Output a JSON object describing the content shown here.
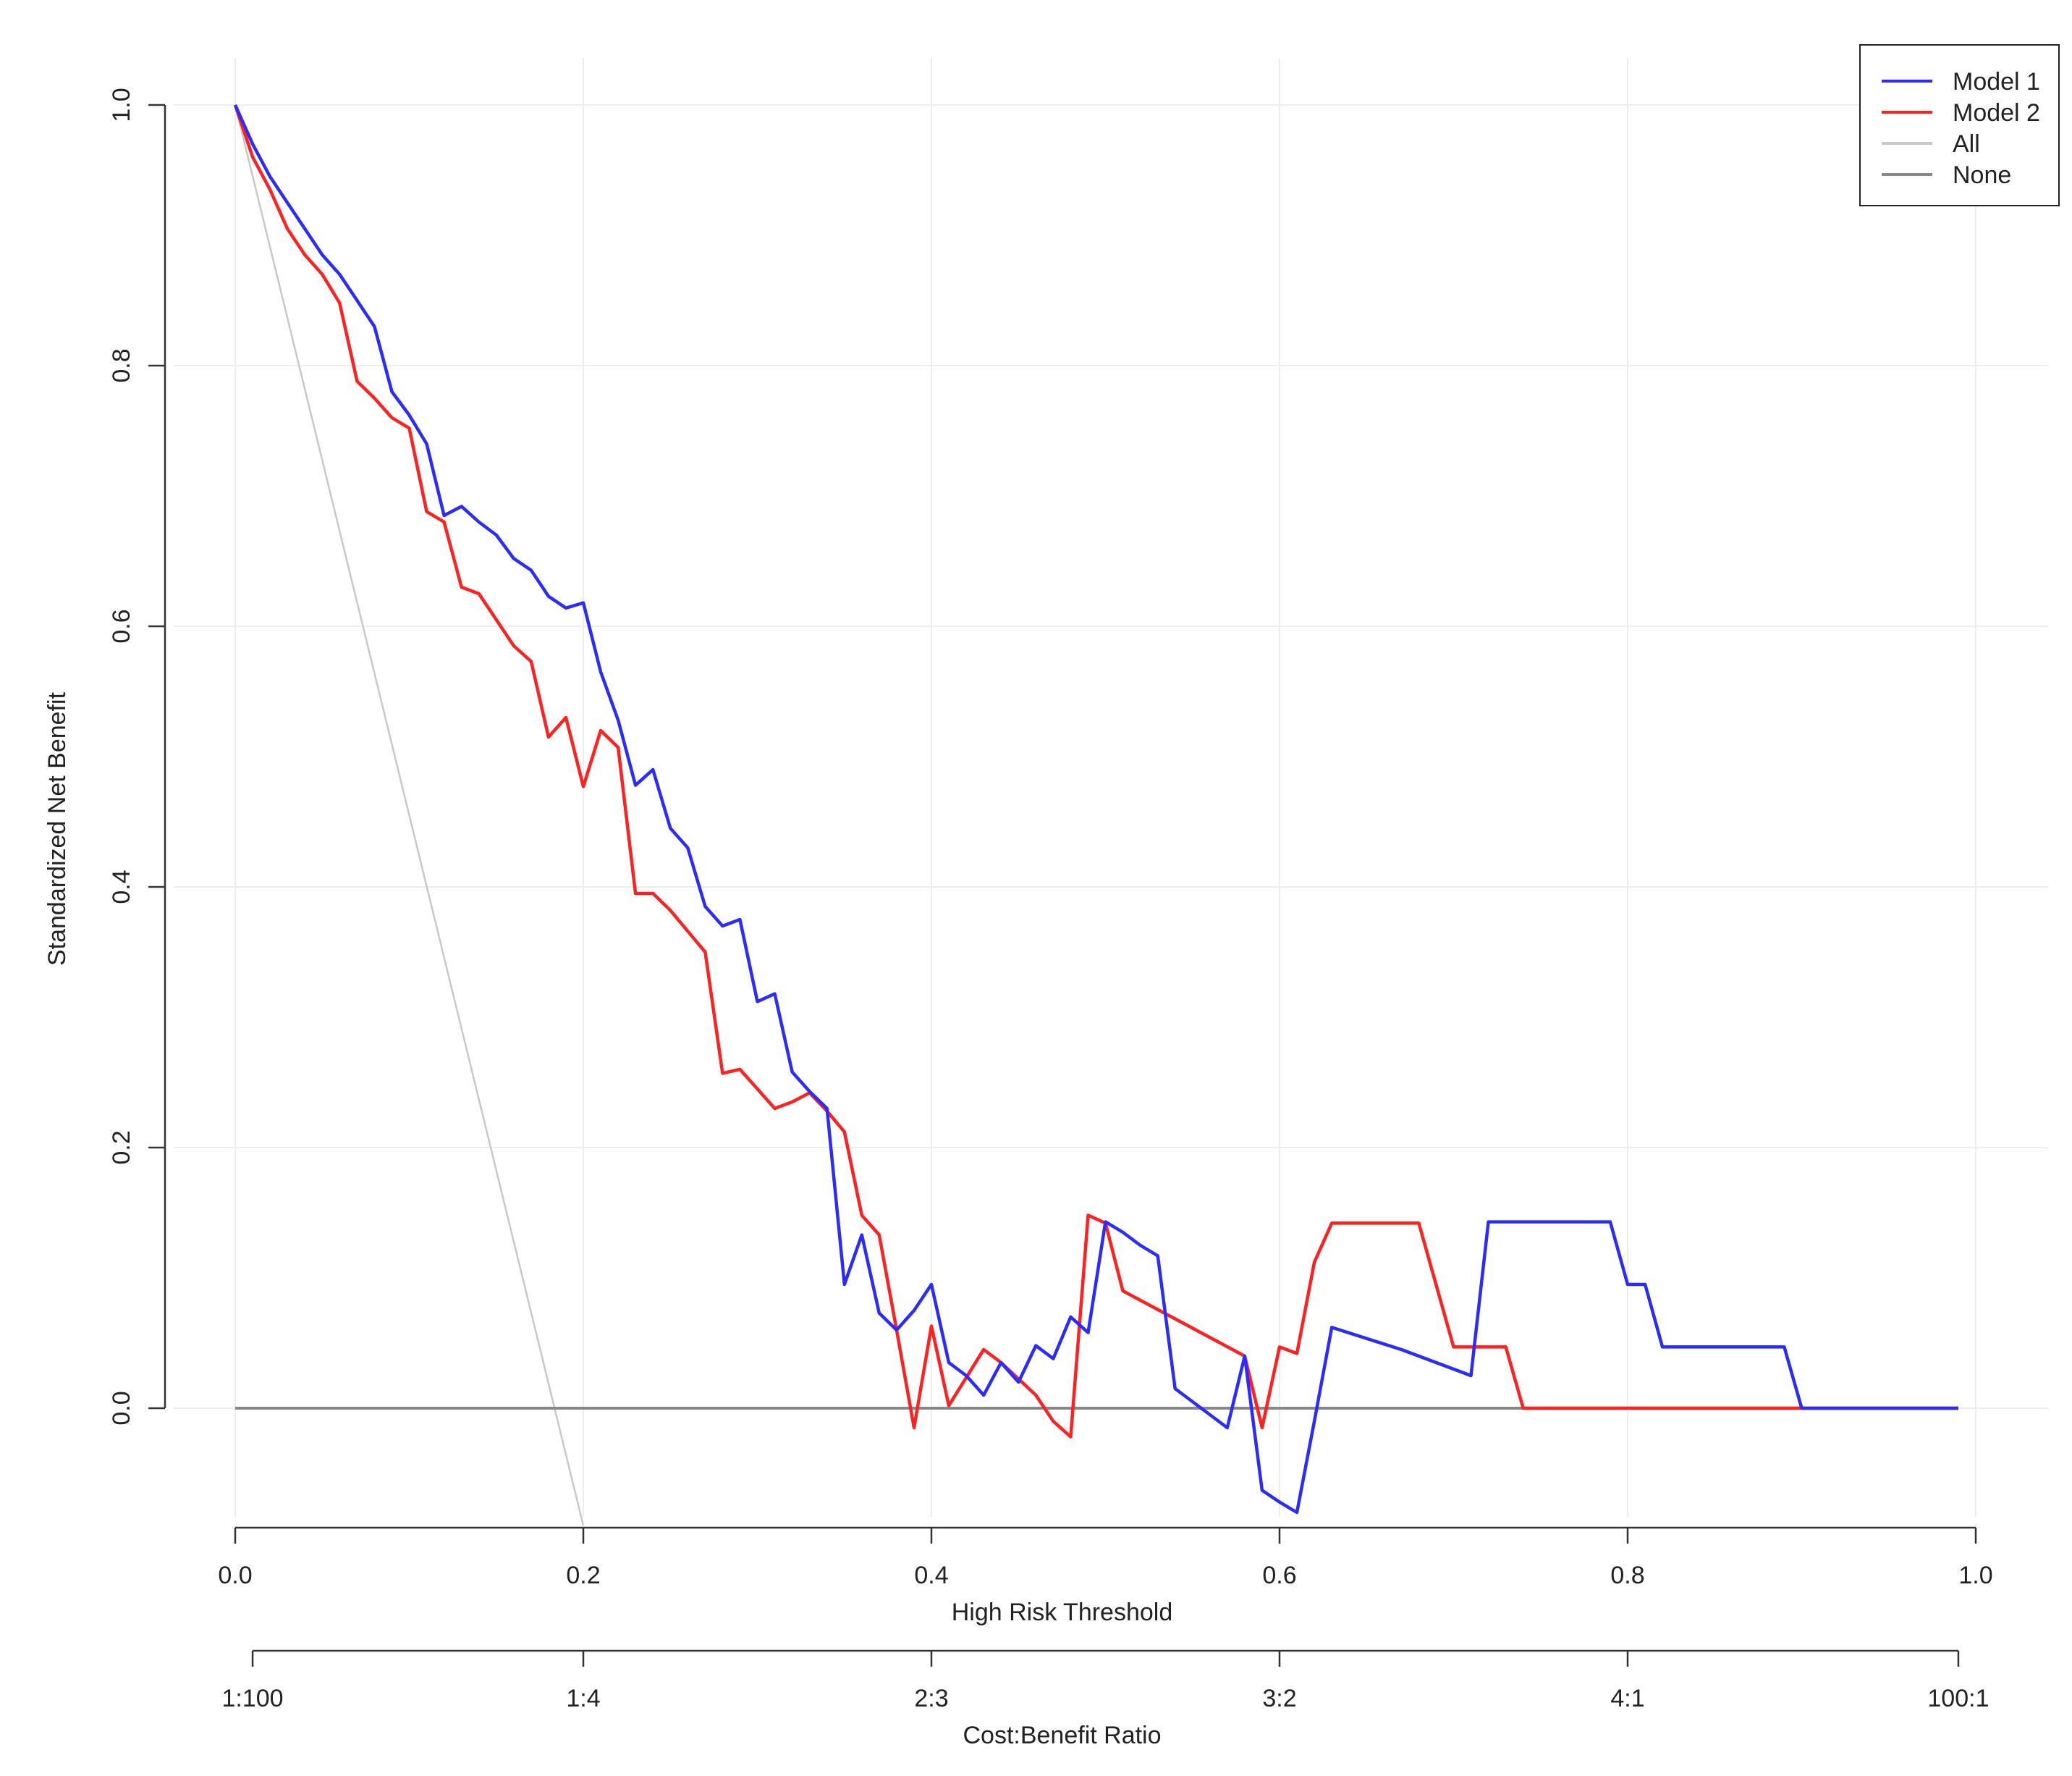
{
  "chart_data": {
    "type": "line",
    "xlabel": "High Risk Threshold",
    "ylabel": "Standardized Net Benefit",
    "x2label": "Cost:Benefit Ratio",
    "xlim": [
      0,
      1
    ],
    "ylim": [
      -0.09,
      1.0
    ],
    "grid": true,
    "legend_position": "top-right",
    "x_ticks": [
      "0.0",
      "0.2",
      "0.4",
      "0.6",
      "0.8",
      "1.0"
    ],
    "x_tick_values": [
      0,
      0.2,
      0.4,
      0.6,
      0.8,
      1.0
    ],
    "y_ticks": [
      "0.0",
      "0.2",
      "0.4",
      "0.6",
      "0.8",
      "1.0"
    ],
    "y_tick_values": [
      0,
      0.2,
      0.4,
      0.6,
      0.8,
      1.0
    ],
    "x2_ticks": [
      "1:100",
      "1:4",
      "2:3",
      "3:2",
      "4:1",
      "100:1"
    ],
    "x2_tick_values": [
      0.01,
      0.2,
      0.4,
      0.6,
      0.8,
      0.99
    ],
    "series": [
      {
        "name": "Model 1",
        "color": "#2b2bff",
        "points": [
          [
            0,
            1.0
          ],
          [
            0.01,
            0.97
          ],
          [
            0.02,
            0.945
          ],
          [
            0.03,
            0.925
          ],
          [
            0.04,
            0.905
          ],
          [
            0.05,
            0.885
          ],
          [
            0.06,
            0.87
          ],
          [
            0.07,
            0.85
          ],
          [
            0.08,
            0.83
          ],
          [
            0.09,
            0.78
          ],
          [
            0.1,
            0.762
          ],
          [
            0.11,
            0.74
          ],
          [
            0.12,
            0.685
          ],
          [
            0.13,
            0.692
          ],
          [
            0.14,
            0.68
          ],
          [
            0.15,
            0.67
          ],
          [
            0.16,
            0.652
          ],
          [
            0.17,
            0.643
          ],
          [
            0.18,
            0.623
          ],
          [
            0.19,
            0.614
          ],
          [
            0.2,
            0.618
          ],
          [
            0.21,
            0.565
          ],
          [
            0.22,
            0.528
          ],
          [
            0.23,
            0.478
          ],
          [
            0.24,
            0.49
          ],
          [
            0.25,
            0.445
          ],
          [
            0.26,
            0.43
          ],
          [
            0.27,
            0.385
          ],
          [
            0.28,
            0.37
          ],
          [
            0.29,
            0.375
          ],
          [
            0.3,
            0.312
          ],
          [
            0.31,
            0.318
          ],
          [
            0.32,
            0.258
          ],
          [
            0.33,
            0.243
          ],
          [
            0.34,
            0.23
          ],
          [
            0.35,
            0.095
          ],
          [
            0.36,
            0.133
          ],
          [
            0.37,
            0.073
          ],
          [
            0.38,
            0.06
          ],
          [
            0.39,
            0.075
          ],
          [
            0.4,
            0.095
          ],
          [
            0.41,
            0.035
          ],
          [
            0.42,
            0.025
          ],
          [
            0.43,
            0.01
          ],
          [
            0.44,
            0.035
          ],
          [
            0.45,
            0.02
          ],
          [
            0.46,
            0.048
          ],
          [
            0.47,
            0.038
          ],
          [
            0.48,
            0.07
          ],
          [
            0.49,
            0.058
          ],
          [
            0.5,
            0.143
          ],
          [
            0.51,
            0.135
          ],
          [
            0.52,
            0.125
          ],
          [
            0.53,
            0.117
          ],
          [
            0.54,
            0.015
          ],
          [
            0.55,
            0.005
          ],
          [
            0.56,
            -0.005
          ],
          [
            0.57,
            -0.015
          ],
          [
            0.58,
            0.04
          ],
          [
            0.59,
            -0.063
          ],
          [
            0.6,
            -0.072
          ],
          [
            0.61,
            -0.08
          ],
          [
            0.62,
            -0.01
          ],
          [
            0.63,
            0.062
          ],
          [
            0.67,
            0.045
          ],
          [
            0.71,
            0.025
          ],
          [
            0.72,
            0.143
          ],
          [
            0.79,
            0.143
          ],
          [
            0.8,
            0.095
          ],
          [
            0.81,
            0.095
          ],
          [
            0.82,
            0.047
          ],
          [
            0.89,
            0.047
          ],
          [
            0.9,
            0.0
          ],
          [
            0.99,
            0.0
          ]
        ]
      },
      {
        "name": "Model 2",
        "color": "#ff2020",
        "points": [
          [
            0,
            1.0
          ],
          [
            0.01,
            0.96
          ],
          [
            0.02,
            0.935
          ],
          [
            0.03,
            0.905
          ],
          [
            0.04,
            0.885
          ],
          [
            0.05,
            0.87
          ],
          [
            0.06,
            0.848
          ],
          [
            0.07,
            0.788
          ],
          [
            0.08,
            0.775
          ],
          [
            0.09,
            0.76
          ],
          [
            0.1,
            0.752
          ],
          [
            0.11,
            0.688
          ],
          [
            0.12,
            0.68
          ],
          [
            0.13,
            0.63
          ],
          [
            0.14,
            0.625
          ],
          [
            0.15,
            0.605
          ],
          [
            0.16,
            0.585
          ],
          [
            0.17,
            0.573
          ],
          [
            0.18,
            0.515
          ],
          [
            0.19,
            0.53
          ],
          [
            0.2,
            0.477
          ],
          [
            0.21,
            0.52
          ],
          [
            0.22,
            0.507
          ],
          [
            0.23,
            0.395
          ],
          [
            0.24,
            0.395
          ],
          [
            0.25,
            0.382
          ],
          [
            0.26,
            0.366
          ],
          [
            0.27,
            0.35
          ],
          [
            0.28,
            0.257
          ],
          [
            0.29,
            0.26
          ],
          [
            0.3,
            0.245
          ],
          [
            0.31,
            0.23
          ],
          [
            0.32,
            0.235
          ],
          [
            0.33,
            0.242
          ],
          [
            0.34,
            0.228
          ],
          [
            0.35,
            0.212
          ],
          [
            0.36,
            0.148
          ],
          [
            0.37,
            0.133
          ],
          [
            0.38,
            0.06
          ],
          [
            0.39,
            -0.015
          ],
          [
            0.4,
            0.063
          ],
          [
            0.41,
            0.002
          ],
          [
            0.43,
            0.045
          ],
          [
            0.44,
            0.035
          ],
          [
            0.46,
            0.01
          ],
          [
            0.47,
            -0.01
          ],
          [
            0.48,
            -0.022
          ],
          [
            0.49,
            0.148
          ],
          [
            0.5,
            0.142
          ],
          [
            0.51,
            0.09
          ],
          [
            0.58,
            0.04
          ],
          [
            0.59,
            -0.015
          ],
          [
            0.6,
            0.047
          ],
          [
            0.61,
            0.042
          ],
          [
            0.62,
            0.112
          ],
          [
            0.63,
            0.142
          ],
          [
            0.68,
            0.142
          ],
          [
            0.7,
            0.047
          ],
          [
            0.73,
            0.047
          ],
          [
            0.74,
            0.0
          ],
          [
            0.99,
            0.0
          ]
        ]
      },
      {
        "name": "All",
        "color": "#c8c8c8",
        "points": [
          [
            0,
            1.0
          ],
          [
            0.2,
            -0.09
          ]
        ]
      },
      {
        "name": "None",
        "color": "#888888",
        "points": [
          [
            0,
            0.0
          ],
          [
            0.99,
            0.0
          ]
        ]
      }
    ]
  }
}
